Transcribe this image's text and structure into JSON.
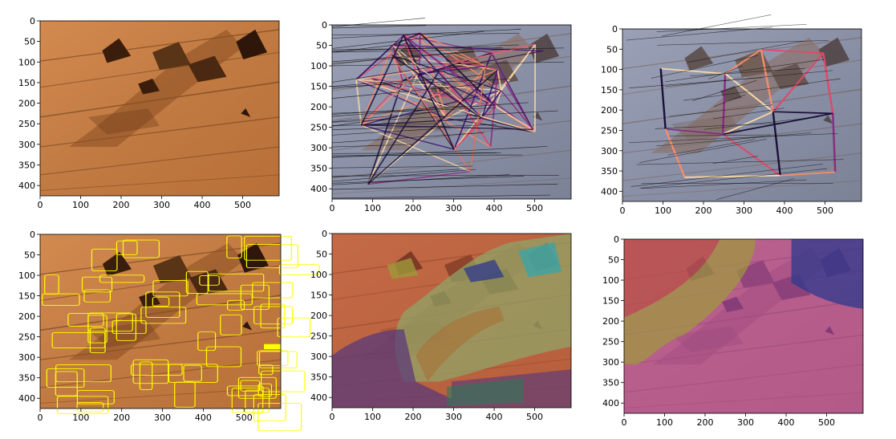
{
  "figure": {
    "panels": [
      {
        "id": "p1",
        "style": "photo",
        "x_ticks": [
          "0",
          "100",
          "200",
          "300",
          "400",
          "500"
        ],
        "y_ticks": [
          "0",
          "50",
          "100",
          "150",
          "200",
          "250",
          "300",
          "350",
          "400"
        ],
        "x_range": [
          0,
          590
        ],
        "y_range": [
          0,
          425
        ]
      },
      {
        "id": "p2",
        "style": "graph-dense",
        "x_ticks": [
          "0",
          "100",
          "200",
          "300",
          "400",
          "500"
        ],
        "y_ticks": [
          "0",
          "50",
          "100",
          "150",
          "200",
          "250",
          "300",
          "350",
          "400"
        ],
        "x_range": [
          0,
          590
        ],
        "y_range": [
          0,
          425
        ]
      },
      {
        "id": "p3",
        "style": "graph-sparse",
        "x_ticks": [
          "0",
          "100",
          "200",
          "300",
          "400",
          "500"
        ],
        "y_ticks": [
          "0",
          "50",
          "100",
          "150",
          "200",
          "250",
          "300",
          "350",
          "400"
        ],
        "x_range": [
          0,
          590
        ],
        "y_range": [
          0,
          425
        ]
      },
      {
        "id": "p4",
        "style": "contours",
        "x_ticks": [
          "0",
          "100",
          "200",
          "300",
          "400",
          "500"
        ],
        "y_ticks": [
          "0",
          "50",
          "100",
          "150",
          "200",
          "250",
          "300",
          "350",
          "400"
        ],
        "x_range": [
          0,
          590
        ],
        "y_range": [
          0,
          425
        ]
      },
      {
        "id": "p5",
        "style": "segmentation-many",
        "x_ticks": [
          "0",
          "100",
          "200",
          "300",
          "400",
          "500"
        ],
        "y_ticks": [
          "0",
          "50",
          "100",
          "150",
          "200",
          "250",
          "300",
          "350",
          "400"
        ],
        "x_range": [
          0,
          590
        ],
        "y_range": [
          0,
          425
        ]
      },
      {
        "id": "p6",
        "style": "segmentation-few",
        "x_ticks": [
          "0",
          "100",
          "200",
          "300",
          "400",
          "500"
        ],
        "y_ticks": [
          "0",
          "50",
          "100",
          "150",
          "200",
          "250",
          "300",
          "350",
          "400"
        ],
        "x_range": [
          0,
          590
        ],
        "y_range": [
          0,
          425
        ]
      }
    ],
    "colors": {
      "rock_light": "#c9804a",
      "rock_dark": "#7a4420",
      "gray_light": "#a6acbf",
      "gray_dark": "#4a4e60",
      "contour": "#ffff00",
      "seg_red": "#b8503f",
      "seg_green": "#8fa86a",
      "seg_purple": "#5b3a7a",
      "seg_yellow": "#9e9a3a",
      "seg_blue": "#2e3a8c",
      "seg_cyan": "#2fa6b0",
      "seg_magenta": "#b04eb4",
      "seg_teal": "#2c7a5a"
    }
  }
}
